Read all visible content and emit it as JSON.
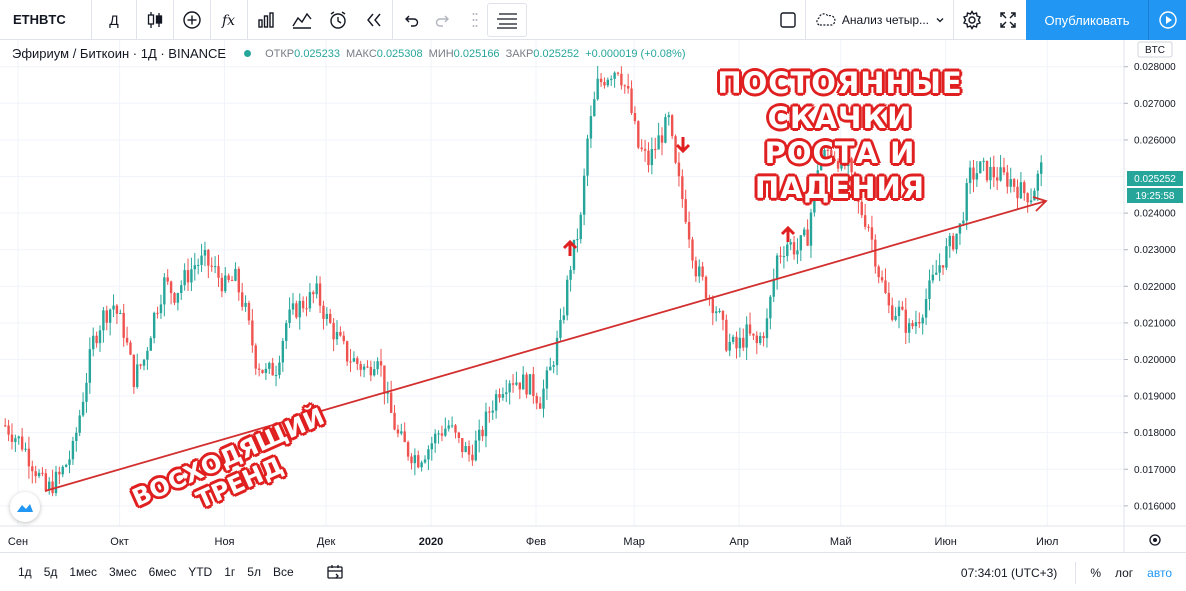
{
  "toolbar": {
    "symbol": "ETHBTC",
    "interval": "Д",
    "layout_name": "Анализ четыр...",
    "publish_label": "Опубликовать"
  },
  "legend": {
    "title": "Эфириум / Биткоин · 1Д · BINANCE",
    "open_label": "ОТКР",
    "open_value": "0.025233",
    "high_label": "МАКС",
    "high_value": "0.025308",
    "low_label": "МИН",
    "low_value": "0.025166",
    "close_label": "ЗАКР",
    "close_value": "0.025252",
    "change": "+0.000019 (+0.08%)"
  },
  "price_axis": {
    "currency": "BTC",
    "current_price": "0.025252",
    "countdown": "19:25:58",
    "ticks": [
      "0.028000",
      "0.027000",
      "0.026000",
      "0.024000",
      "0.023000",
      "0.022000",
      "0.021000",
      "0.020000",
      "0.019000",
      "0.018000",
      "0.017000",
      "0.016000"
    ]
  },
  "time_axis": {
    "labels": [
      "Сен",
      "Окт",
      "Ноя",
      "Дек",
      "2020",
      "Фев",
      "Мар",
      "Апр",
      "Май",
      "Июн",
      "Июл"
    ]
  },
  "annotations": {
    "top_line1": "ПОСТОЯННЫЕ СКАЧКИ",
    "top_line2": "РОСТА И ПАДЕНИЯ",
    "trend_label": "ВОСХОДЯЩИЙ ТРЕНД"
  },
  "bottom_bar": {
    "ranges": [
      "1д",
      "5д",
      "1мес",
      "3мес",
      "6мес",
      "YTD",
      "1г",
      "5л",
      "Все"
    ],
    "clock": "07:34:01 (UTC+3)",
    "percent": "%",
    "log": "лог",
    "auto": "авто"
  },
  "colors": {
    "up": "#26a69a",
    "down": "#ef5350",
    "accent": "#2196f3",
    "trend": "#d32f2f"
  },
  "chart_data": {
    "type": "candlestick",
    "title": "Эфириум / Биткоин · 1Д · BINANCE",
    "ylim": [
      0.0155,
      0.0285
    ],
    "months": [
      "Сен",
      "Окт",
      "Ноя",
      "Дек",
      "2020",
      "Фев",
      "Мар",
      "Апр",
      "Май",
      "Июн",
      "Июл"
    ],
    "close_path": [
      [
        0,
        0.0182
      ],
      [
        5,
        0.0177
      ],
      [
        9,
        0.017
      ],
      [
        12,
        0.0164
      ],
      [
        16,
        0.0168
      ],
      [
        20,
        0.0175
      ],
      [
        23,
        0.019
      ],
      [
        26,
        0.0205
      ],
      [
        29,
        0.0212
      ],
      [
        32,
        0.0215
      ],
      [
        35,
        0.0208
      ],
      [
        38,
        0.0195
      ],
      [
        41,
        0.02
      ],
      [
        44,
        0.0212
      ],
      [
        47,
        0.0221
      ],
      [
        50,
        0.0218
      ],
      [
        53,
        0.0222
      ],
      [
        56,
        0.0226
      ],
      [
        59,
        0.0227
      ],
      [
        62,
        0.0224
      ],
      [
        65,
        0.022
      ],
      [
        68,
        0.0222
      ],
      [
        71,
        0.0213
      ],
      [
        74,
        0.02
      ],
      [
        77,
        0.0196
      ],
      [
        80,
        0.0198
      ],
      [
        83,
        0.021
      ],
      [
        86,
        0.0214
      ],
      [
        89,
        0.0216
      ],
      [
        92,
        0.0218
      ],
      [
        95,
        0.0211
      ],
      [
        98,
        0.0206
      ],
      [
        101,
        0.0201
      ],
      [
        104,
        0.0199
      ],
      [
        107,
        0.0197
      ],
      [
        110,
        0.0202
      ],
      [
        113,
        0.0188
      ],
      [
        116,
        0.0179
      ],
      [
        119,
        0.0175
      ],
      [
        122,
        0.0173
      ],
      [
        125,
        0.0176
      ],
      [
        128,
        0.018
      ],
      [
        131,
        0.0182
      ],
      [
        134,
        0.0177
      ],
      [
        137,
        0.0174
      ],
      [
        140,
        0.0178
      ],
      [
        143,
        0.0186
      ],
      [
        146,
        0.0192
      ],
      [
        149,
        0.0195
      ],
      [
        152,
        0.0194
      ],
      [
        155,
        0.0193
      ],
      [
        158,
        0.0189
      ],
      [
        161,
        0.0197
      ],
      [
        164,
        0.0208
      ],
      [
        167,
        0.0226
      ],
      [
        170,
        0.0238
      ],
      [
        172,
        0.026
      ],
      [
        175,
        0.0275
      ],
      [
        178,
        0.0278
      ],
      [
        181,
        0.028
      ],
      [
        184,
        0.0272
      ],
      [
        187,
        0.0258
      ],
      [
        190,
        0.0254
      ],
      [
        193,
        0.026
      ],
      [
        196,
        0.0265
      ],
      [
        198,
        0.0252
      ],
      [
        201,
        0.024
      ],
      [
        204,
        0.0225
      ],
      [
        207,
        0.0219
      ],
      [
        210,
        0.0214
      ],
      [
        213,
        0.0205
      ],
      [
        216,
        0.0203
      ],
      [
        219,
        0.0207
      ],
      [
        222,
        0.0204
      ],
      [
        225,
        0.021
      ],
      [
        228,
        0.0228
      ],
      [
        231,
        0.0232
      ],
      [
        234,
        0.023
      ],
      [
        237,
        0.0234
      ],
      [
        240,
        0.0253
      ],
      [
        243,
        0.0257
      ],
      [
        246,
        0.0255
      ],
      [
        249,
        0.0252
      ],
      [
        252,
        0.0242
      ],
      [
        255,
        0.0237
      ],
      [
        258,
        0.0224
      ],
      [
        261,
        0.0214
      ],
      [
        264,
        0.0213
      ],
      [
        267,
        0.0208
      ],
      [
        270,
        0.0212
      ],
      [
        273,
        0.0219
      ],
      [
        276,
        0.0226
      ],
      [
        279,
        0.0231
      ],
      [
        282,
        0.0236
      ],
      [
        285,
        0.025
      ],
      [
        288,
        0.0252
      ],
      [
        291,
        0.0251
      ],
      [
        294,
        0.025
      ],
      [
        297,
        0.0249
      ],
      [
        300,
        0.0246
      ],
      [
        303,
        0.0245
      ],
      [
        306,
        0.0252
      ]
    ]
  }
}
